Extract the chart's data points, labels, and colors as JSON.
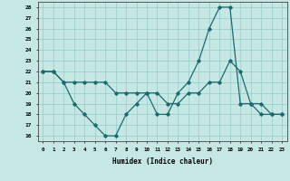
{
  "xlabel": "Humidex (Indice chaleur)",
  "background_color": "#c5e8e5",
  "grid_color": "#9ecece",
  "line_color": "#1a6b6b",
  "xlim": [
    -0.5,
    23.5
  ],
  "ylim": [
    15.5,
    28.5
  ],
  "yticks": [
    16,
    17,
    18,
    19,
    20,
    21,
    22,
    23,
    24,
    25,
    26,
    27,
    28
  ],
  "xticks": [
    0,
    1,
    2,
    3,
    4,
    5,
    6,
    7,
    8,
    9,
    10,
    11,
    12,
    13,
    14,
    15,
    16,
    17,
    18,
    19,
    20,
    21,
    22,
    23
  ],
  "line1_x": [
    0,
    1,
    2,
    3,
    4,
    5,
    6,
    7,
    8,
    9,
    10,
    11,
    12,
    13,
    14,
    15,
    16,
    17,
    18,
    19,
    20,
    21,
    22,
    23
  ],
  "line1_y": [
    22,
    22,
    21,
    19,
    18,
    17,
    16,
    16,
    18,
    19,
    20,
    18,
    18,
    20,
    21,
    23,
    26,
    28,
    28,
    19,
    19,
    18,
    18,
    18
  ],
  "line2_x": [
    0,
    1,
    2,
    3,
    4,
    5,
    6,
    7,
    8,
    9,
    10,
    11,
    12,
    13,
    14,
    15,
    16,
    17,
    18,
    19,
    20,
    21,
    22,
    23
  ],
  "line2_y": [
    22,
    22,
    21,
    21,
    21,
    21,
    21,
    20,
    20,
    20,
    20,
    20,
    19,
    19,
    20,
    20,
    21,
    21,
    23,
    22,
    19,
    19,
    18,
    18
  ]
}
